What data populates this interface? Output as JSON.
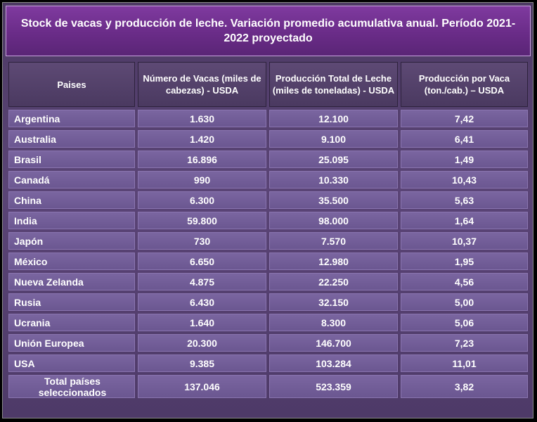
{
  "title": "Stock de vacas y producción de leche. Variación promedio acumulativa anual. Período 2021-2022 proyectado",
  "headers": {
    "country": "Paises",
    "cows": "Número de Vacas (miles de cabezas) - USDA",
    "milk": "Producción Total de Leche (miles de toneladas) - USDA",
    "per_cow": "Producción por Vaca (ton./cab.) – USDA"
  },
  "rows": [
    {
      "country": "Argentina",
      "cows": "1.630",
      "milk": "12.100",
      "per_cow": "7,42"
    },
    {
      "country": "Australia",
      "cows": "1.420",
      "milk": "9.100",
      "per_cow": "6,41"
    },
    {
      "country": "Brasil",
      "cows": "16.896",
      "milk": "25.095",
      "per_cow": "1,49"
    },
    {
      "country": "Canadá",
      "cows": "990",
      "milk": "10.330",
      "per_cow": "10,43"
    },
    {
      "country": "China",
      "cows": "6.300",
      "milk": "35.500",
      "per_cow": "5,63"
    },
    {
      "country": "India",
      "cows": "59.800",
      "milk": "98.000",
      "per_cow": "1,64"
    },
    {
      "country": "Japón",
      "cows": "730",
      "milk": "7.570",
      "per_cow": "10,37"
    },
    {
      "country": "México",
      "cows": "6.650",
      "milk": "12.980",
      "per_cow": "1,95"
    },
    {
      "country": "Nueva Zelanda",
      "cows": "4.875",
      "milk": "22.250",
      "per_cow": "4,56"
    },
    {
      "country": "Rusia",
      "cows": "6.430",
      "milk": "32.150",
      "per_cow": "5,00"
    },
    {
      "country": "Ucrania",
      "cows": "1.640",
      "milk": "8.300",
      "per_cow": "5,06"
    },
    {
      "country": "Unión Europea",
      "cows": "20.300",
      "milk": "146.700",
      "per_cow": "7,23"
    },
    {
      "country": "USA",
      "cows": "9.385",
      "milk": "103.284",
      "per_cow": "11,01"
    }
  ],
  "total": {
    "country": "Total países seleccionados",
    "cows": "137.046",
    "milk": "523.359",
    "per_cow": "3,82"
  }
}
